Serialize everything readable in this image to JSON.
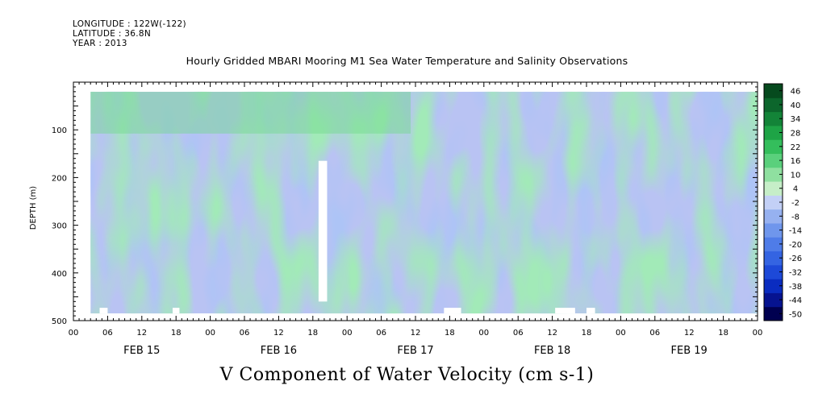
{
  "header": {
    "longitude": "LONGITUDE : 122W(-122)",
    "latitude": "LATITUDE : 36.8N",
    "year": "YEAR : 2013",
    "title": "Hourly Gridded MBARI Mooring M1 Sea Water Temperature and Salinity Observations"
  },
  "chart_data": {
    "type": "heatmap",
    "title": "Hourly Gridded MBARI Mooring M1 Sea Water Temperature and Salinity Observations",
    "variable_title": "V Component of Water Velocity (cm s-1)",
    "ylabel": "DEPTH (m)",
    "yticks": [
      100,
      200,
      300,
      400,
      500
    ],
    "ylim": [
      500,
      0
    ],
    "xlim_hours": [
      0,
      120
    ],
    "hour_ticks": [
      "00",
      "06",
      "12",
      "18",
      "00",
      "06",
      "12",
      "18",
      "00",
      "06",
      "12",
      "18",
      "00",
      "06",
      "12",
      "18",
      "00",
      "06",
      "12",
      "18",
      "00"
    ],
    "day_labels": [
      "FEB 15",
      "FEB 16",
      "FEB 17",
      "FEB 18",
      "FEB 19"
    ],
    "data_extent": {
      "start_hour": 3,
      "end_hour": 120,
      "top_depth": 20,
      "bottom_depth": 485
    },
    "colorbar": {
      "levels": [
        -50,
        -44,
        -38,
        -32,
        -26,
        -20,
        -14,
        -8,
        -2,
        4,
        10,
        16,
        22,
        28,
        34,
        40,
        46
      ],
      "labels": [
        "46",
        "40",
        "34",
        "28",
        "22",
        "16",
        "10",
        "4",
        "-2",
        "-8",
        "-14",
        "-20",
        "-26",
        "-32",
        "-38",
        "-44",
        "-50"
      ],
      "colors": [
        "#000050",
        "#061390",
        "#0a2cc0",
        "#1d49d8",
        "#3464e2",
        "#4f7ce8",
        "#6f96ec",
        "#96b1f0",
        "#c3d0f6",
        "#c6eec8",
        "#8fe0a0",
        "#5ad07c",
        "#34be5c",
        "#1ea446",
        "#138438",
        "#0c662c",
        "#064a1e"
      ]
    },
    "gap": {
      "start_hour": 43,
      "end_hour": 44.5,
      "top_depth": 165,
      "bottom_depth": 460
    }
  }
}
